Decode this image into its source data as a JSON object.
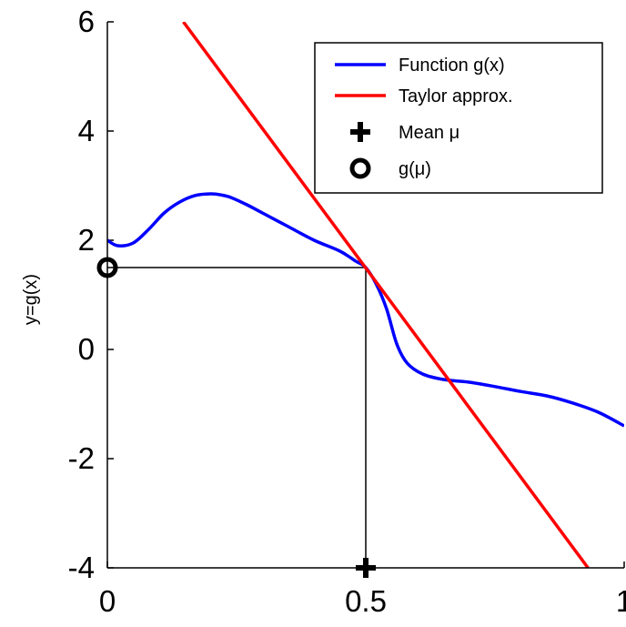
{
  "chart_data": {
    "type": "line",
    "title": "",
    "xlabel": "",
    "ylabel": "y=g(x)",
    "xlim": [
      0,
      1
    ],
    "ylim": [
      -4,
      6
    ],
    "x_ticks": [
      0,
      0.5,
      1
    ],
    "x_tick_labels": [
      "0",
      "0.5",
      "1"
    ],
    "y_ticks": [
      -4,
      -2,
      0,
      2,
      4,
      6
    ],
    "y_tick_labels": [
      "-4",
      "-2",
      "0",
      "2",
      "4",
      "6"
    ],
    "grid": false,
    "legend_position": "top-right",
    "series": [
      {
        "name": "Function g(x)",
        "color": "#0000ff",
        "x": [
          0,
          0.02,
          0.05,
          0.08,
          0.11,
          0.14,
          0.17,
          0.2,
          0.22,
          0.24,
          0.27,
          0.3,
          0.35,
          0.4,
          0.45,
          0.48,
          0.5,
          0.52,
          0.54,
          0.56,
          0.58,
          0.61,
          0.65,
          0.7,
          0.75,
          0.8,
          0.85,
          0.9,
          0.95,
          1.0
        ],
        "y": [
          2.0,
          1.9,
          1.95,
          2.2,
          2.5,
          2.7,
          2.82,
          2.85,
          2.83,
          2.78,
          2.65,
          2.5,
          2.25,
          2.0,
          1.8,
          1.62,
          1.5,
          1.2,
          0.75,
          0.1,
          -0.25,
          -0.45,
          -0.55,
          -0.6,
          -0.68,
          -0.77,
          -0.85,
          -0.98,
          -1.15,
          -1.4
        ]
      },
      {
        "name": "Taylor approx.",
        "color": "#ff0000",
        "x": [
          0.147,
          0.93
        ],
        "y": [
          6,
          -4
        ]
      }
    ],
    "points": [
      {
        "name": "Mean μ",
        "marker": "plus",
        "x": 0.5,
        "y": -4
      },
      {
        "name": "g(μ)",
        "marker": "circle",
        "x": 0,
        "y": 1.5
      }
    ],
    "guides": {
      "mean_x": 0.5,
      "g_mu": 1.5
    },
    "legend": [
      {
        "label": "Function g(x)",
        "kind": "line",
        "color": "#0000ff"
      },
      {
        "label": "Taylor approx.",
        "kind": "line",
        "color": "#ff0000"
      },
      {
        "label": "Mean μ",
        "kind": "plus",
        "color": "#000000"
      },
      {
        "label": "g(μ)",
        "kind": "circle",
        "color": "#000000"
      }
    ]
  }
}
